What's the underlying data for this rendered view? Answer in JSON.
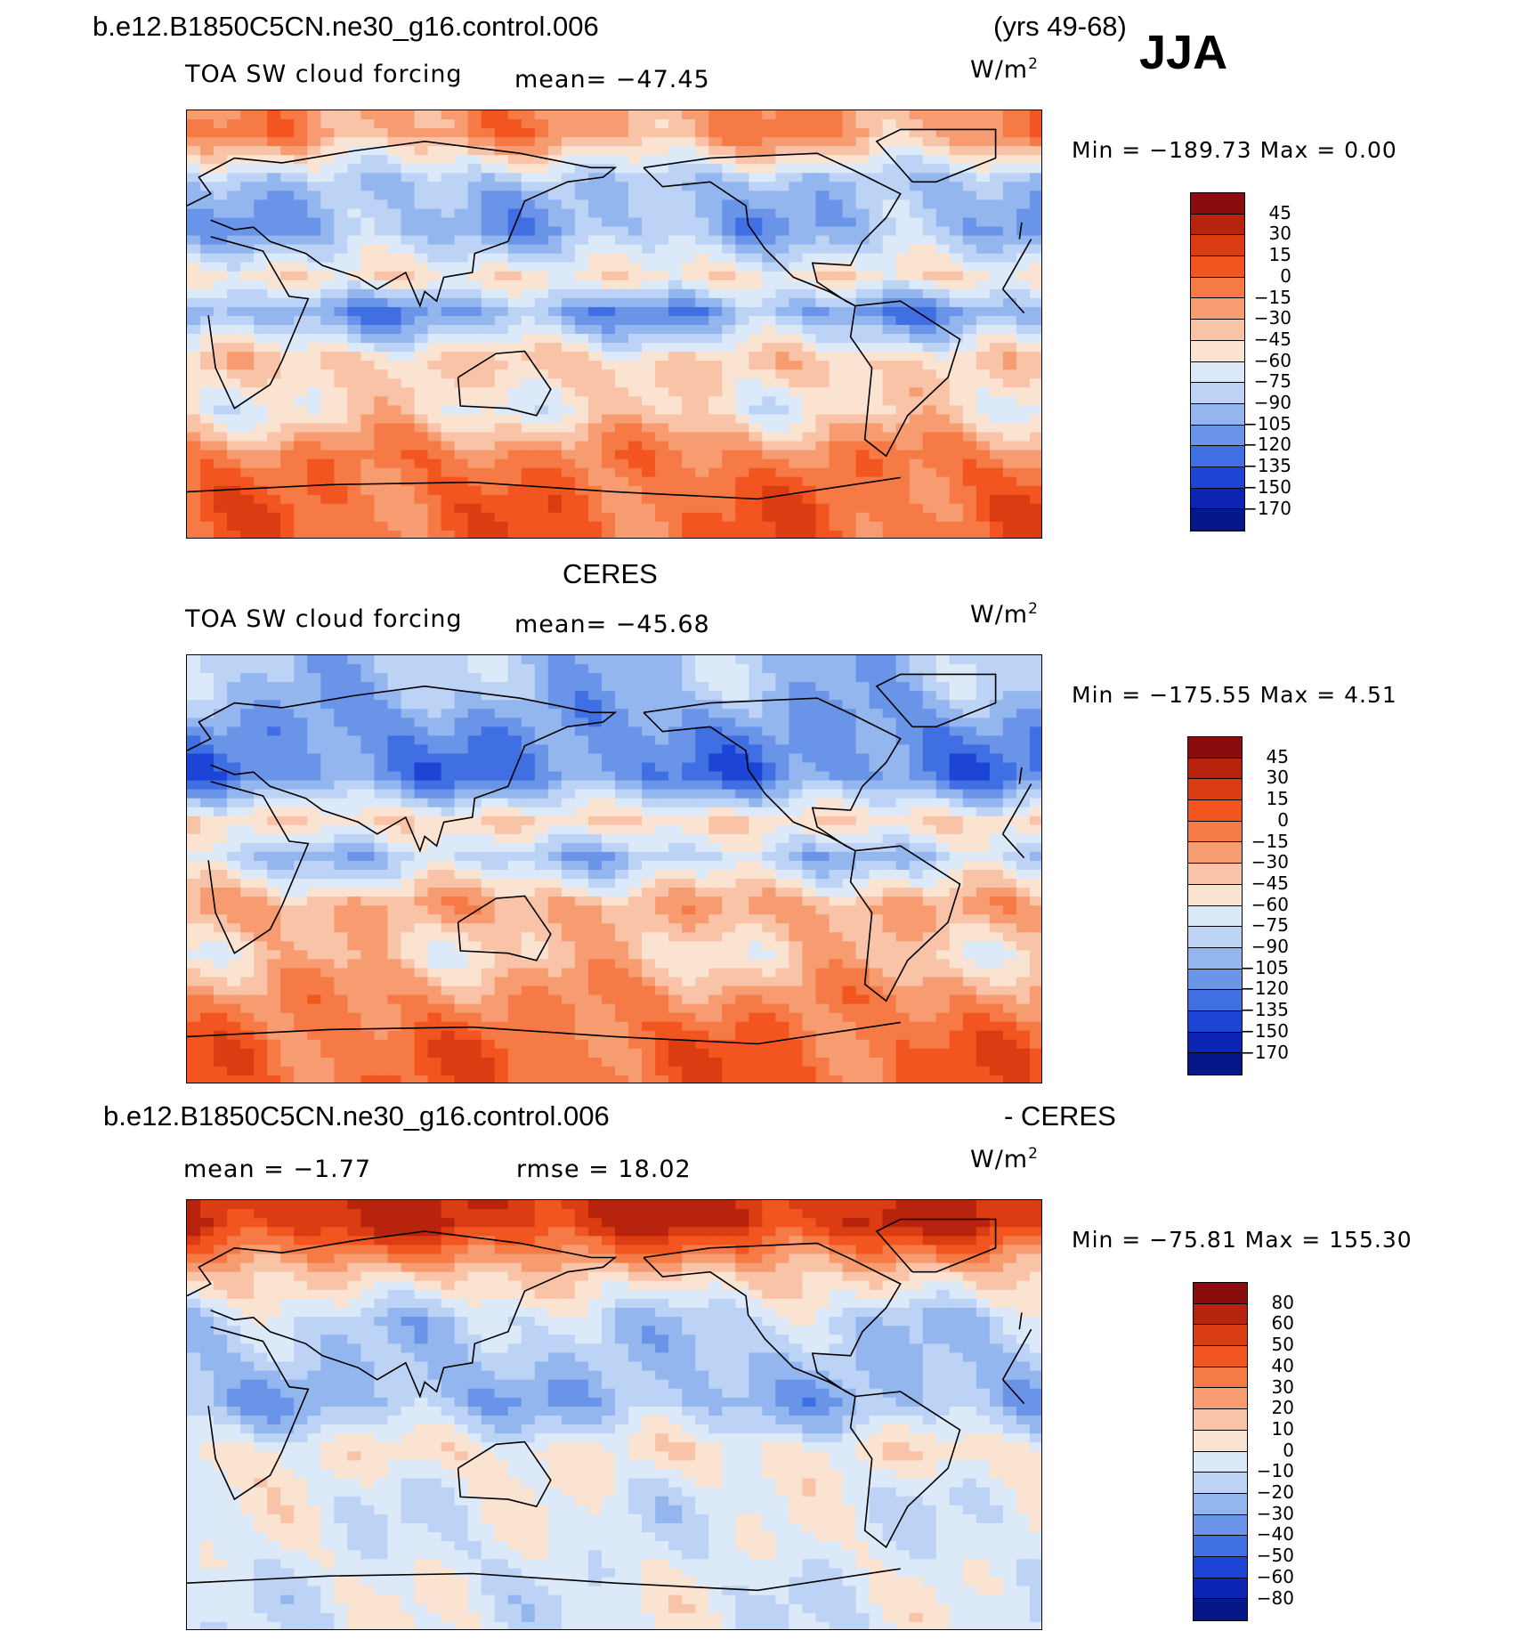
{
  "header": {
    "run_name": "b.e12.B1850C5CN.ne30_g16.control.006",
    "years": "(yrs 49-68)",
    "season": "JJA"
  },
  "panels": [
    {
      "id": "model",
      "title": "",
      "variable": "TOA SW cloud forcing",
      "mean_label": "mean= −47.45",
      "units_base": "W/m",
      "units_exp": "2",
      "minmax": "Min = −189.73 Max =    0.00"
    },
    {
      "id": "obs",
      "title": "CERES",
      "variable": "TOA SW cloud forcing",
      "mean_label": "mean= −45.68",
      "units_base": "W/m",
      "units_exp": "2",
      "minmax": "Min = −175.55 Max =    4.51"
    },
    {
      "id": "diff",
      "title_left": "b.e12.B1850C5CN.ne30_g16.control.006",
      "title_right": "- CERES",
      "mean_label": "mean =   −1.77",
      "rmse_label": "rmse =   18.02",
      "units_base": "W/m",
      "units_exp": "2",
      "minmax": "Min = −75.81 Max = 155.30"
    }
  ],
  "chart_data": [
    {
      "type": "heatmap",
      "title": "TOA SW cloud forcing (model)",
      "units": "W/m2",
      "mean": -47.45,
      "min": -189.73,
      "max": 0.0,
      "colorbar_levels": [
        "45",
        "30",
        "15",
        "0",
        "−15",
        "−30",
        "−45",
        "−60",
        "−75",
        "−90",
        "−105",
        "−120",
        "−135",
        "−150",
        "−170"
      ],
      "colorbar_colors": [
        "#8b0c0c",
        "#b8230d",
        "#dc3c12",
        "#f2551f",
        "#f57a45",
        "#f79c70",
        "#f9c3a8",
        "#fbe3d2",
        "#dce9f9",
        "#bcd3f5",
        "#94b6ef",
        "#6a94e8",
        "#3f6fe2",
        "#1c45d6",
        "#0b24b3",
        "#061889"
      ],
      "zonal_bands": [
        {
          "lat": 80,
          "value": -20
        },
        {
          "lat": 60,
          "value": -90
        },
        {
          "lat": 40,
          "value": -100
        },
        {
          "lat": 20,
          "value": -50
        },
        {
          "lat": 5,
          "value": -110
        },
        {
          "lat": -15,
          "value": -40
        },
        {
          "lat": -35,
          "value": -55
        },
        {
          "lat": -55,
          "value": -10
        },
        {
          "lat": -75,
          "value": 0
        }
      ]
    },
    {
      "type": "heatmap",
      "title": "TOA SW cloud forcing (CERES)",
      "units": "W/m2",
      "mean": -45.68,
      "min": -175.55,
      "max": 4.51,
      "colorbar_levels": [
        "45",
        "30",
        "15",
        "0",
        "−15",
        "−30",
        "−45",
        "−60",
        "−75",
        "−90",
        "−105",
        "−120",
        "−135",
        "−150",
        "−170"
      ],
      "colorbar_colors": [
        "#8b0c0c",
        "#b8230d",
        "#dc3c12",
        "#f2551f",
        "#f57a45",
        "#f79c70",
        "#f9c3a8",
        "#fbe3d2",
        "#dce9f9",
        "#bcd3f5",
        "#94b6ef",
        "#6a94e8",
        "#3f6fe2",
        "#1c45d6",
        "#0b24b3",
        "#061889"
      ],
      "zonal_bands": [
        {
          "lat": 80,
          "value": -90
        },
        {
          "lat": 60,
          "value": -110
        },
        {
          "lat": 40,
          "value": -120
        },
        {
          "lat": 20,
          "value": -45
        },
        {
          "lat": 5,
          "value": -90
        },
        {
          "lat": -15,
          "value": -25
        },
        {
          "lat": -35,
          "value": -45
        },
        {
          "lat": -55,
          "value": -15
        },
        {
          "lat": -75,
          "value": 0
        }
      ]
    },
    {
      "type": "heatmap",
      "title": "Model - CERES",
      "units": "W/m2",
      "mean": -1.77,
      "rmse": 18.02,
      "min": -75.81,
      "max": 155.3,
      "colorbar_levels": [
        "80",
        "60",
        "50",
        "40",
        "30",
        "20",
        "10",
        "0",
        "−10",
        "−20",
        "−30",
        "−40",
        "−50",
        "−60",
        "−80"
      ],
      "colorbar_colors": [
        "#8b0c0c",
        "#b8230d",
        "#dc3c12",
        "#f2551f",
        "#f57a45",
        "#f79c70",
        "#f9c3a8",
        "#fbe3d2",
        "#dce9f9",
        "#bcd3f5",
        "#94b6ef",
        "#6a94e8",
        "#3f6fe2",
        "#1c45d6",
        "#0b24b3",
        "#061889"
      ],
      "zonal_bands": [
        {
          "lat": 80,
          "value": 60
        },
        {
          "lat": 60,
          "value": 15
        },
        {
          "lat": 40,
          "value": -15
        },
        {
          "lat": 20,
          "value": -20
        },
        {
          "lat": 5,
          "value": -25
        },
        {
          "lat": -15,
          "value": 5
        },
        {
          "lat": -35,
          "value": -5
        },
        {
          "lat": -55,
          "value": -5
        },
        {
          "lat": -75,
          "value": -5
        }
      ]
    }
  ]
}
